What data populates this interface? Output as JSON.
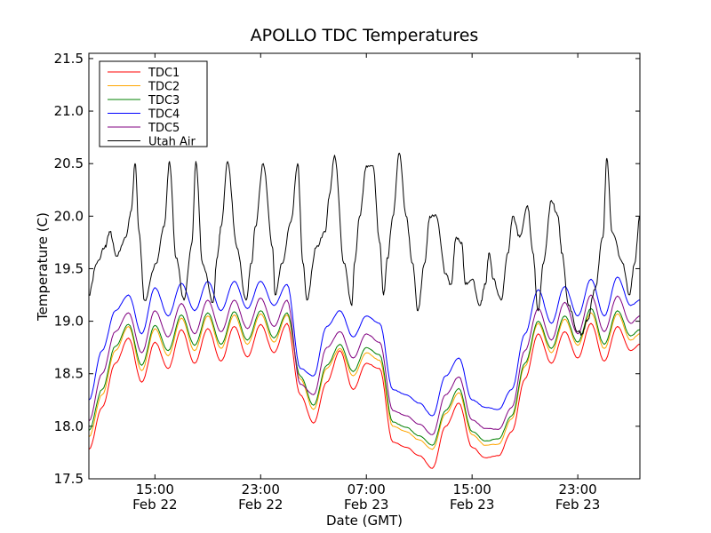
{
  "chart_data": {
    "type": "line",
    "title": "APOLLO TDC Temperatures",
    "xlabel": "Date (GMT)",
    "ylabel": "Temperature (C)",
    "x_unit": "hours since Feb 22 10:00 GMT",
    "xlim": [
      0,
      41.7
    ],
    "ylim": [
      17.5,
      21.55
    ],
    "grid": false,
    "legend_position": "top-left",
    "y_ticks": [
      "17.5",
      "18.0",
      "18.5",
      "19.0",
      "19.5",
      "20.0",
      "20.5",
      "21.0",
      "21.5"
    ],
    "x_ticks": [
      {
        "value": 5,
        "time": "15:00",
        "date": "Feb 22"
      },
      {
        "value": 13,
        "time": "23:00",
        "date": "Feb 22"
      },
      {
        "value": 21,
        "time": "07:00",
        "date": "Feb 23"
      },
      {
        "value": 29,
        "time": "15:00",
        "date": "Feb 23"
      },
      {
        "value": 37,
        "time": "23:00",
        "date": "Feb 23"
      }
    ],
    "series": [
      {
        "name": "TDC1",
        "color": "#ff0000",
        "x": [
          0,
          1,
          2,
          3,
          4,
          5,
          6,
          7,
          8,
          9,
          10,
          11,
          12,
          13,
          14,
          15,
          16,
          17,
          18,
          19,
          20,
          21,
          22,
          23,
          24,
          25,
          26,
          27,
          28,
          29,
          30,
          31,
          32,
          33,
          34,
          35,
          36,
          37,
          38,
          39,
          40,
          41,
          41.7
        ],
        "y": [
          17.78,
          18.18,
          18.6,
          18.84,
          18.42,
          18.8,
          18.55,
          18.92,
          18.6,
          18.93,
          18.62,
          18.95,
          18.66,
          18.97,
          18.7,
          18.98,
          18.3,
          18.03,
          18.42,
          18.72,
          18.35,
          18.6,
          18.55,
          17.85,
          17.8,
          17.72,
          17.6,
          18.0,
          18.22,
          17.8,
          17.7,
          17.72,
          17.95,
          18.45,
          18.88,
          18.6,
          18.9,
          18.65,
          18.98,
          18.62,
          18.95,
          18.72,
          18.78
        ]
      },
      {
        "name": "TDC2",
        "color": "#ffa500",
        "x": [
          0,
          1,
          2,
          3,
          4,
          5,
          6,
          7,
          8,
          9,
          10,
          11,
          12,
          13,
          14,
          15,
          16,
          17,
          18,
          19,
          20,
          21,
          22,
          23,
          24,
          25,
          26,
          27,
          28,
          29,
          30,
          31,
          32,
          33,
          34,
          35,
          36,
          37,
          38,
          39,
          40,
          41,
          41.7
        ],
        "y": [
          17.9,
          18.3,
          18.72,
          18.95,
          18.53,
          18.93,
          18.67,
          19.03,
          18.72,
          19.05,
          18.74,
          19.06,
          18.78,
          19.07,
          18.8,
          19.06,
          18.45,
          18.16,
          18.55,
          18.74,
          18.48,
          18.7,
          18.63,
          18.0,
          17.95,
          17.87,
          17.78,
          18.12,
          18.32,
          17.92,
          17.82,
          17.83,
          18.07,
          18.57,
          18.98,
          18.7,
          19.02,
          18.77,
          19.08,
          18.74,
          19.07,
          18.82,
          18.88
        ]
      },
      {
        "name": "TDC3",
        "color": "#008000",
        "x": [
          0,
          1,
          2,
          3,
          4,
          5,
          6,
          7,
          8,
          9,
          10,
          11,
          12,
          13,
          14,
          15,
          16,
          17,
          18,
          19,
          20,
          21,
          22,
          23,
          24,
          25,
          26,
          27,
          28,
          29,
          30,
          31,
          32,
          33,
          34,
          35,
          36,
          37,
          38,
          39,
          40,
          41,
          41.7
        ],
        "y": [
          17.96,
          18.35,
          18.76,
          18.97,
          18.58,
          18.96,
          18.72,
          19.06,
          18.77,
          19.08,
          18.78,
          19.09,
          18.82,
          19.1,
          18.84,
          19.08,
          18.48,
          18.2,
          18.58,
          18.78,
          18.52,
          18.75,
          18.68,
          18.04,
          17.99,
          17.91,
          17.82,
          18.15,
          18.36,
          17.95,
          17.86,
          17.88,
          18.1,
          18.6,
          19.0,
          18.74,
          19.05,
          18.8,
          19.12,
          18.78,
          19.1,
          18.86,
          18.92
        ]
      },
      {
        "name": "TDC4",
        "color": "#0000ff",
        "x": [
          0,
          1,
          2,
          3,
          4,
          5,
          6,
          7,
          8,
          9,
          10,
          11,
          12,
          13,
          14,
          15,
          16,
          17,
          18,
          19,
          20,
          21,
          22,
          23,
          24,
          25,
          26,
          27,
          28,
          29,
          30,
          31,
          32,
          33,
          34,
          35,
          36,
          37,
          38,
          39,
          40,
          41,
          41.7
        ],
        "y": [
          18.25,
          18.72,
          19.1,
          19.25,
          18.88,
          19.32,
          19.05,
          19.36,
          19.1,
          19.38,
          19.1,
          19.38,
          19.12,
          19.38,
          19.15,
          19.35,
          18.55,
          18.48,
          18.95,
          19.1,
          18.85,
          19.05,
          18.98,
          18.35,
          18.3,
          18.22,
          18.1,
          18.48,
          18.65,
          18.25,
          18.18,
          18.16,
          18.35,
          18.88,
          19.3,
          18.98,
          19.33,
          19.05,
          19.4,
          19.05,
          19.42,
          19.15,
          19.2
        ]
      },
      {
        "name": "TDC5",
        "color": "#800080",
        "x": [
          0,
          1,
          2,
          3,
          4,
          5,
          6,
          7,
          8,
          9,
          10,
          11,
          12,
          13,
          14,
          15,
          16,
          17,
          18,
          19,
          20,
          21,
          22,
          23,
          24,
          25,
          26,
          27,
          28,
          29,
          30,
          31,
          32,
          33,
          34,
          35,
          36,
          37,
          38,
          39,
          40,
          41,
          41.7
        ],
        "y": [
          18.05,
          18.5,
          18.9,
          19.08,
          18.7,
          19.1,
          18.85,
          19.17,
          18.88,
          19.2,
          18.9,
          19.2,
          18.93,
          19.22,
          18.95,
          19.2,
          18.4,
          18.3,
          18.75,
          18.9,
          18.65,
          18.88,
          18.8,
          18.15,
          18.1,
          18.02,
          17.92,
          18.3,
          18.47,
          18.06,
          17.98,
          17.97,
          18.18,
          18.72,
          19.12,
          18.82,
          19.18,
          18.88,
          19.25,
          18.9,
          19.24,
          18.98,
          19.05
        ]
      },
      {
        "name": "Utah Air",
        "color": "#000000",
        "x": [
          0,
          0.6,
          1.2,
          1.6,
          2.1,
          2.8,
          3.2,
          3.5,
          3.8,
          4.2,
          5.1,
          5.7,
          6.1,
          6.6,
          7.2,
          7.8,
          8.1,
          8.6,
          9.4,
          9.7,
          10.0,
          10.5,
          11.2,
          11.9,
          12.3,
          12.6,
          13.2,
          13.9,
          14.1,
          14.6,
          15.3,
          15.8,
          16.2,
          16.5,
          17.2,
          17.9,
          18.2,
          18.6,
          19.3,
          19.9,
          20.1,
          20.5,
          21.0,
          21.5,
          22.0,
          22.3,
          22.6,
          23.0,
          23.5,
          24.0,
          24.5,
          24.9,
          25.4,
          25.8,
          26.3,
          27.0,
          27.4,
          27.8,
          28.2,
          28.5,
          29.0,
          29.6,
          30.0,
          30.3,
          30.6,
          31.2,
          31.7,
          32.1,
          32.6,
          33.2,
          33.6,
          34.0,
          34.4,
          35.0,
          35.5,
          35.8,
          36.3,
          37.0,
          37.3,
          37.7,
          38.3,
          38.9,
          39.2,
          39.6,
          40.4,
          40.9,
          41.3,
          41.7
        ],
        "y": [
          19.25,
          19.55,
          19.7,
          19.85,
          19.62,
          19.8,
          20.05,
          20.5,
          19.85,
          19.2,
          19.55,
          19.9,
          20.52,
          19.6,
          19.2,
          19.75,
          20.52,
          19.55,
          19.18,
          19.6,
          19.9,
          20.52,
          19.7,
          19.2,
          19.55,
          19.9,
          20.5,
          19.7,
          19.25,
          19.55,
          19.95,
          20.5,
          19.55,
          19.2,
          19.7,
          19.85,
          20.2,
          20.58,
          19.55,
          19.15,
          19.55,
          20.0,
          20.48,
          20.48,
          19.75,
          19.25,
          19.6,
          20.0,
          20.6,
          20.0,
          19.55,
          19.1,
          19.55,
          20.0,
          20.0,
          19.45,
          19.35,
          19.8,
          19.75,
          19.35,
          19.4,
          19.15,
          19.35,
          19.65,
          19.4,
          19.2,
          19.65,
          20.0,
          19.8,
          20.1,
          19.65,
          19.1,
          19.55,
          20.15,
          20.0,
          19.65,
          19.15,
          18.9,
          18.88,
          19.0,
          19.3,
          19.8,
          20.55,
          19.85,
          19.55,
          19.25,
          19.55,
          20.0
        ]
      }
    ]
  }
}
